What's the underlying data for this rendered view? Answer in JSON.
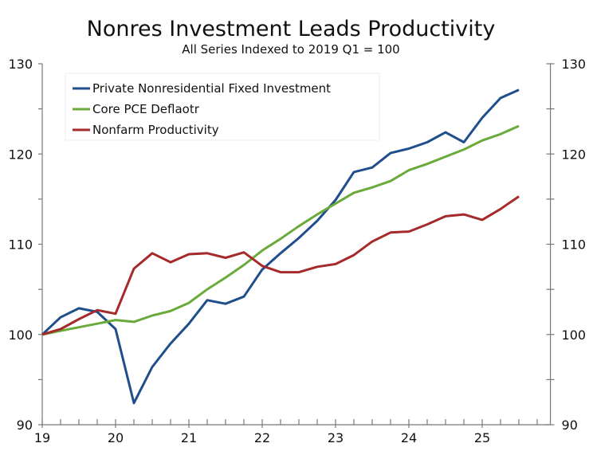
{
  "chart_data": {
    "type": "line",
    "title": "Nonres Investment Leads Productivity",
    "subtitle": "All Series Indexed to 2019 Q1 = 100",
    "xlabel": "",
    "ylabel": "",
    "xlim": [
      19,
      25.93
    ],
    "ylim": [
      90,
      130
    ],
    "x_ticks": [
      "19",
      "20",
      "21",
      "22",
      "23",
      "24",
      "25"
    ],
    "y_ticks_left": [
      "90",
      "100",
      "110",
      "120",
      "130"
    ],
    "y_ticks_right": [
      "90",
      "100",
      "110",
      "120",
      "130"
    ],
    "grid": false,
    "legend_position": "top-left",
    "x": [
      19,
      19.25,
      19.5,
      19.75,
      20,
      20.25,
      20.5,
      20.75,
      21,
      21.25,
      21.5,
      21.75,
      22,
      22.25,
      22.5,
      22.75,
      23,
      23.25,
      23.5,
      23.75,
      24,
      24.25,
      24.5,
      24.75,
      25,
      25.25,
      25.5
    ],
    "series": [
      {
        "name": "Private Nonresidential Fixed Investment",
        "color": "#1f4e8c",
        "values": [
          100,
          101.9,
          102.9,
          102.5,
          100.6,
          92.4,
          96.4,
          99.0,
          101.2,
          103.8,
          103.4,
          104.2,
          107.2,
          109.0,
          110.7,
          112.6,
          114.9,
          118.0,
          118.5,
          120.1,
          120.6,
          121.3,
          122.4,
          121.3,
          124.0,
          126.2,
          127.1
        ]
      },
      {
        "name": "Core PCE Deflaotr",
        "color": "#6aaa3a",
        "values": [
          100,
          100.4,
          100.8,
          101.2,
          101.6,
          101.4,
          102.1,
          102.6,
          103.5,
          105.0,
          106.3,
          107.7,
          109.3,
          110.6,
          112.0,
          113.3,
          114.5,
          115.7,
          116.3,
          117.0,
          118.2,
          118.9,
          119.7,
          120.5,
          121.5,
          122.2,
          123.1
        ]
      },
      {
        "name": "Nonfarm Productivity",
        "color": "#a52a2a",
        "values": [
          100,
          100.6,
          101.7,
          102.7,
          102.3,
          107.3,
          109.0,
          108.0,
          108.9,
          109.0,
          108.5,
          109.1,
          107.6,
          106.9,
          106.9,
          107.5,
          107.8,
          108.8,
          110.3,
          111.3,
          111.4,
          112.2,
          113.1,
          113.3,
          112.7,
          113.9,
          115.3
        ]
      }
    ]
  }
}
